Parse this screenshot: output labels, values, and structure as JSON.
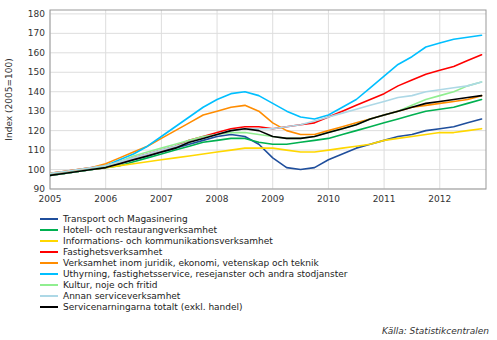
{
  "chart_data": {
    "type": "line",
    "ylabel": "Index (2005=100)",
    "source": "Källa: Statistikcentralen",
    "x": [
      2005.0,
      2005.25,
      2005.5,
      2005.75,
      2006.0,
      2006.25,
      2006.5,
      2006.75,
      2007.0,
      2007.25,
      2007.5,
      2007.75,
      2008.0,
      2008.25,
      2008.5,
      2008.75,
      2009.0,
      2009.25,
      2009.5,
      2009.75,
      2010.0,
      2010.25,
      2010.5,
      2010.75,
      2011.0,
      2011.25,
      2011.5,
      2011.75,
      2012.0,
      2012.25,
      2012.5,
      2012.75
    ],
    "xlim": [
      2005.0,
      2012.83
    ],
    "ylim": [
      90,
      182
    ],
    "xticks": [
      2005,
      2006,
      2007,
      2008,
      2009,
      2010,
      2011,
      2012
    ],
    "yticks": [
      90,
      100,
      110,
      120,
      130,
      140,
      150,
      160,
      170,
      180
    ],
    "grid": true,
    "legend": "bottom",
    "series": [
      {
        "name": "Transport och Magasinering",
        "color": "#1f4e9c",
        "values": [
          97,
          98,
          99,
          100,
          101,
          103,
          105,
          107,
          109,
          111,
          113,
          115,
          117,
          118,
          117,
          113,
          106,
          101,
          100,
          101,
          105,
          108,
          111,
          113,
          115,
          117,
          118,
          120,
          121,
          122,
          124,
          126
        ]
      },
      {
        "name": "Hotell- och restaurangverksamhet",
        "color": "#00b050",
        "values": [
          98,
          98,
          99,
          100,
          101,
          102,
          104,
          106,
          108,
          110,
          112,
          114,
          115,
          116,
          116,
          114,
          113,
          113,
          114,
          115,
          116,
          118,
          120,
          122,
          124,
          126,
          128,
          130,
          131,
          132,
          134,
          136
        ]
      },
      {
        "name": "Informations- och kommunikationsverksamhet",
        "color": "#ffd700",
        "values": [
          97,
          98,
          99,
          100,
          101,
          102,
          103,
          104,
          105,
          106,
          107,
          108,
          109,
          110,
          111,
          111,
          111,
          110,
          109,
          109,
          110,
          111,
          112,
          113,
          115,
          116,
          117,
          118,
          119,
          119,
          120,
          121
        ]
      },
      {
        "name": "Fastighetsverksamhet",
        "color": "#ff0000",
        "values": [
          98,
          99,
          100,
          101,
          102,
          104,
          106,
          108,
          110,
          112,
          115,
          117,
          119,
          121,
          122,
          122,
          121,
          122,
          123,
          124,
          127,
          130,
          133,
          136,
          139,
          143,
          146,
          149,
          151,
          153,
          156,
          159
        ]
      },
      {
        "name": "Verksamhet inom juridik, ekonomi, vetenskap och teknik",
        "color": "#ff8c00",
        "values": [
          98,
          99,
          100,
          101,
          103,
          106,
          109,
          112,
          116,
          120,
          124,
          128,
          130,
          132,
          133,
          130,
          124,
          120,
          118,
          118,
          120,
          122,
          124,
          126,
          128,
          130,
          132,
          133,
          134,
          135,
          136,
          138
        ]
      },
      {
        "name": "Uthyrning, fastighetsservice, resejanster och andra stodjanster",
        "color": "#00bfff",
        "values": [
          97,
          98,
          99,
          100,
          102,
          105,
          108,
          112,
          117,
          122,
          127,
          132,
          136,
          139,
          140,
          138,
          134,
          130,
          127,
          126,
          128,
          132,
          136,
          142,
          148,
          154,
          158,
          163,
          165,
          167,
          168,
          169
        ]
      },
      {
        "name": "Kultur, noje och fritid",
        "color": "#90ee90",
        "values": [
          97,
          98,
          99,
          100,
          102,
          104,
          107,
          109,
          111,
          113,
          115,
          117,
          118,
          119,
          119,
          118,
          117,
          116,
          116,
          117,
          119,
          121,
          123,
          126,
          128,
          130,
          133,
          136,
          138,
          140,
          143,
          145
        ]
      },
      {
        "name": "Annan serviceverksamhet",
        "color": "#add8e6",
        "values": [
          98,
          99,
          100,
          101,
          102,
          104,
          106,
          108,
          110,
          112,
          114,
          116,
          118,
          120,
          121,
          121,
          121,
          122,
          123,
          125,
          127,
          129,
          131,
          133,
          135,
          137,
          138,
          140,
          141,
          142,
          143,
          145
        ]
      },
      {
        "name": "Servicenarningarna totalt (exkl. handel)",
        "color": "#000000",
        "values": [
          97,
          98,
          99,
          100,
          101,
          103,
          105,
          107,
          109,
          111,
          114,
          116,
          118,
          120,
          121,
          120,
          117,
          116,
          116,
          117,
          119,
          121,
          123,
          126,
          128,
          130,
          132,
          134,
          135,
          136,
          137,
          138
        ]
      }
    ]
  }
}
